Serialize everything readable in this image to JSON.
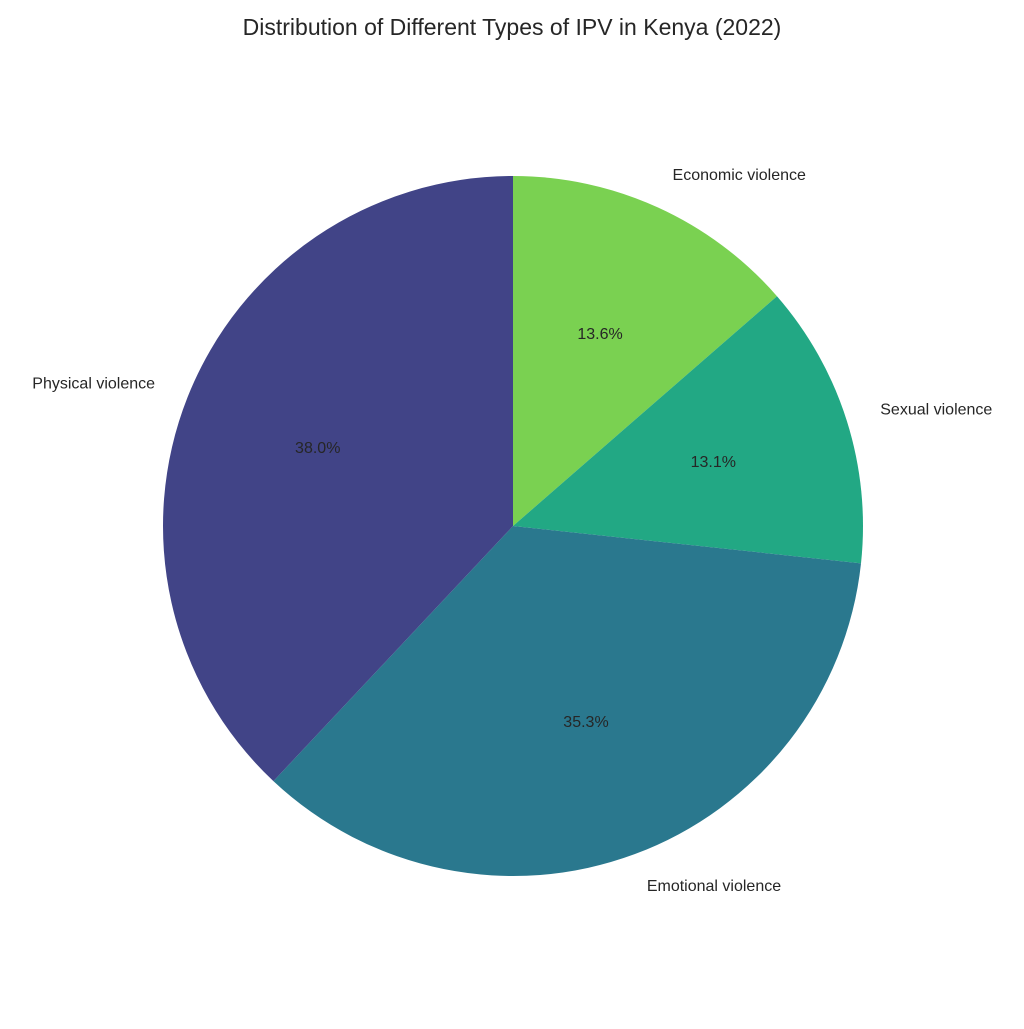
{
  "chart_data": {
    "type": "pie",
    "title": "Distribution of Different Types of IPV in Kenya (2022)",
    "categories": [
      "Economic violence",
      "Sexual violence",
      "Emotional violence",
      "Physical violence"
    ],
    "values": [
      13.6,
      13.1,
      35.3,
      38.0
    ],
    "percent_labels": [
      "13.6%",
      "13.1%",
      "35.3%",
      "38.0%"
    ],
    "colors": [
      "#7ad151",
      "#22a884",
      "#2a788e",
      "#414487"
    ],
    "start_angle_deg": 90,
    "direction": "clockwise",
    "legend": "none"
  }
}
